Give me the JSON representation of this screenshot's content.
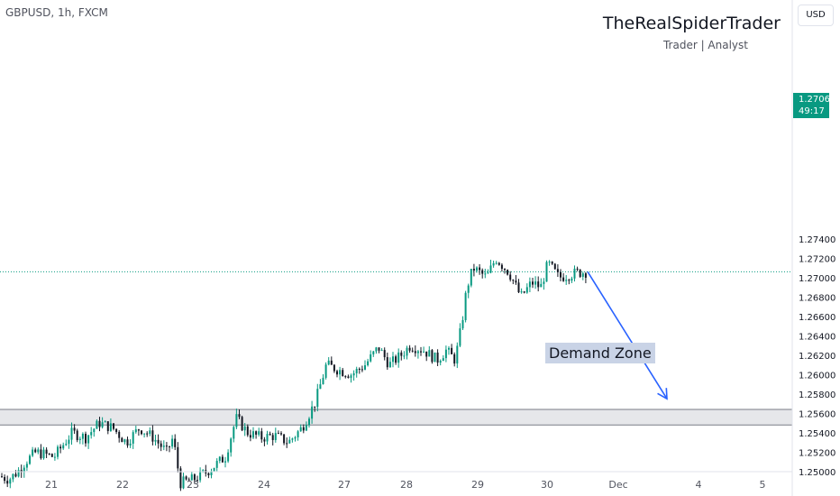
{
  "header": {
    "symbol": "GBPUSD, 1h, FXCM",
    "brand": "TheRealSpiderTrader",
    "brand_sub": "Trader | Analyst",
    "currency": "USD"
  },
  "last_price": {
    "price": "1.27060",
    "countdown": "49:17",
    "color": "#089981"
  },
  "colors": {
    "up": "#089981",
    "down": "#131722",
    "arrow": "#2962ff",
    "zone": "#e6e7ea"
  },
  "chart_data": {
    "type": "candlestick",
    "symbol": "GBPUSD",
    "timeframe": "1h",
    "ylim": [
      1.2485,
      1.275
    ],
    "y_ticks": [
      "1.25000",
      "1.25200",
      "1.25400",
      "1.25600",
      "1.25800",
      "1.26000",
      "1.26200",
      "1.26400",
      "1.26600",
      "1.26800",
      "1.27000",
      "1.27200",
      "1.27400"
    ],
    "x_ticks": [
      "21",
      "22",
      "23",
      "24",
      "27",
      "28",
      "29",
      "30",
      "Dec",
      "4",
      "5"
    ],
    "last_price": 1.2706,
    "demand_zone": {
      "label": "Demand Zone",
      "top": 1.2564,
      "bottom": 1.2548
    },
    "projection": {
      "from_price": 1.2706,
      "to_price": 1.2575
    },
    "keypoints": [
      [
        0,
        1.2495
      ],
      [
        10,
        1.2492
      ],
      [
        20,
        1.25
      ],
      [
        28,
        1.251
      ],
      [
        40,
        1.252
      ],
      [
        60,
        1.2515
      ],
      [
        80,
        1.254
      ],
      [
        95,
        1.2535
      ],
      [
        110,
        1.255
      ],
      [
        125,
        1.2545
      ],
      [
        140,
        1.253
      ],
      [
        155,
        1.2545
      ],
      [
        170,
        1.2535
      ],
      [
        185,
        1.252
      ],
      [
        192,
        1.2535
      ],
      [
        200,
        1.2488
      ],
      [
        215,
        1.2492
      ],
      [
        230,
        1.25
      ],
      [
        250,
        1.2515
      ],
      [
        262,
        1.2555
      ],
      [
        275,
        1.254
      ],
      [
        290,
        1.2535
      ],
      [
        305,
        1.2537
      ],
      [
        320,
        1.253
      ],
      [
        335,
        1.2545
      ],
      [
        350,
        1.2572
      ],
      [
        362,
        1.261
      ],
      [
        375,
        1.2605
      ],
      [
        390,
        1.26
      ],
      [
        405,
        1.261
      ],
      [
        420,
        1.2628
      ],
      [
        432,
        1.261
      ],
      [
        445,
        1.262
      ],
      [
        455,
        1.263
      ],
      [
        470,
        1.2625
      ],
      [
        485,
        1.2615
      ],
      [
        495,
        1.2625
      ],
      [
        505,
        1.2615
      ],
      [
        512,
        1.265
      ],
      [
        518,
        1.269
      ],
      [
        525,
        1.271
      ],
      [
        540,
        1.27
      ],
      [
        550,
        1.272
      ],
      [
        565,
        1.2705
      ],
      [
        578,
        1.268
      ],
      [
        590,
        1.2695
      ],
      [
        600,
        1.269
      ],
      [
        608,
        1.2715
      ],
      [
        620,
        1.27
      ],
      [
        640,
        1.2705
      ],
      [
        652,
        1.2706
      ]
    ]
  }
}
